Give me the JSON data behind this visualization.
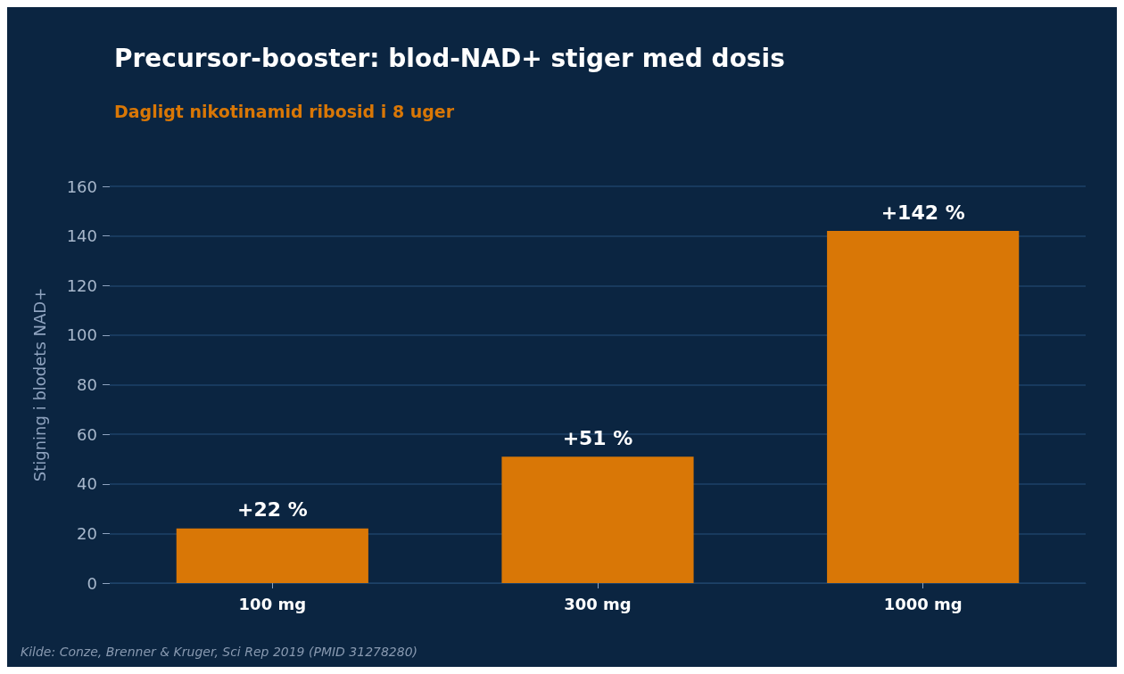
{
  "chart_data": {
    "type": "bar",
    "title": "Precursor-booster: blod-NAD+ stiger med dosis",
    "subtitle": "Dagligt nikotinamid ribosid i 8 uger",
    "ylabel": "Stigning i blodets NAD+",
    "categories": [
      "100 mg",
      "300 mg",
      "1000 mg"
    ],
    "values": [
      22,
      51,
      142
    ],
    "value_labels": [
      "+22 %",
      "+51 %",
      "+142 %"
    ],
    "color": "#d97706",
    "ylim": [
      0,
      160
    ],
    "yticks": [
      0,
      20,
      40,
      60,
      80,
      100,
      120,
      140,
      160
    ],
    "grid": "y",
    "annotations": [
      "Kilde: Conze, Brenner & Kruger, Sci Rep 2019 (PMID 31278280)"
    ]
  }
}
